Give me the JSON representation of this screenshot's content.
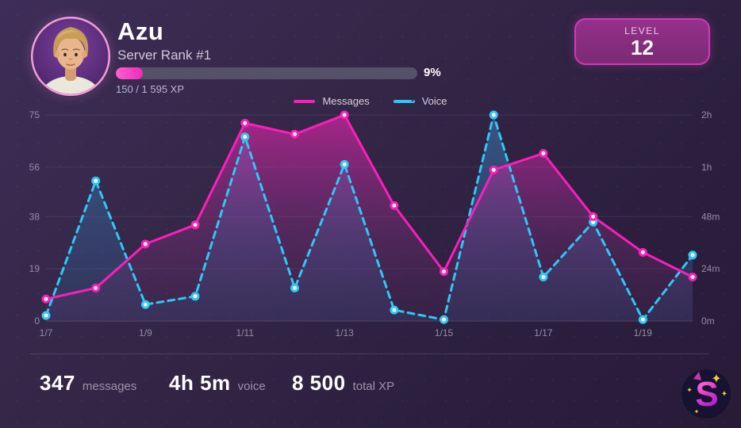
{
  "header": {
    "username": "Azu",
    "rank_label": "Server Rank #1",
    "progress_percent": 9,
    "progress_percent_label": "9%",
    "xp_label": "150 / 1 595 XP",
    "level_caption": "LEVEL",
    "level_value": "12"
  },
  "legend": [
    {
      "label": "Messages",
      "color": "#fb1fba",
      "style": "solid"
    },
    {
      "label": "Voice",
      "color": "#2fc8f6",
      "style": "dashed"
    }
  ],
  "chart_data": {
    "type": "line",
    "categories": [
      "1/7",
      "1/8",
      "1/9",
      "1/10",
      "1/11",
      "1/12",
      "1/13",
      "1/14",
      "1/15",
      "1/16",
      "1/17",
      "1/18",
      "1/19",
      "1/20"
    ],
    "x_tick_labels": [
      "1/7",
      "1/9",
      "1/11",
      "1/13",
      "1/15",
      "1/17",
      "1/19"
    ],
    "x_tick_indices": [
      0,
      2,
      4,
      6,
      8,
      10,
      12
    ],
    "ylim": [
      0,
      75
    ],
    "left_axis_ticks": [
      0,
      19,
      38,
      56,
      75
    ],
    "right_axis_tick_labels": [
      "0m",
      "24m",
      "48m",
      "1h",
      "2h"
    ],
    "right_axis_tick_positions_left_scale": [
      0,
      19,
      38,
      56,
      75
    ],
    "grid": true,
    "legend_position": "top",
    "series": [
      {
        "name": "Messages",
        "axis": "left",
        "line": "solid",
        "color": "#fb1fba",
        "values": [
          8,
          12,
          28,
          35,
          72,
          68,
          75,
          42,
          18,
          55,
          61,
          38,
          25,
          16
        ]
      },
      {
        "name": "Voice",
        "axis": "right",
        "line": "dashed",
        "color": "#2fc8f6",
        "values_left_scale": [
          2,
          51,
          6,
          9,
          67,
          12,
          57,
          4,
          0.5,
          75,
          16,
          36,
          0.5,
          24
        ],
        "values_time_est": [
          "3m",
          "57m",
          "8m",
          "11m",
          "1h35m",
          "15m",
          "1h3m",
          "5m",
          "1m",
          "2h",
          "20m",
          "45m",
          "1m",
          "30m"
        ]
      }
    ]
  },
  "stats": [
    {
      "value": "347",
      "label": "messages"
    },
    {
      "value": "4h 5m",
      "label": "voice"
    },
    {
      "value": "8 500",
      "label": "total XP"
    }
  ],
  "logo": {
    "letter": "S"
  },
  "colors": {
    "messages": "#fb1fba",
    "voice": "#2fc8f6",
    "progress_fill": "#f32ab9",
    "progress_track": "#57506b",
    "level_border": "#cf3cb4",
    "axis_label": "#948ca6",
    "star": "#f4c843",
    "background": "#332646"
  }
}
